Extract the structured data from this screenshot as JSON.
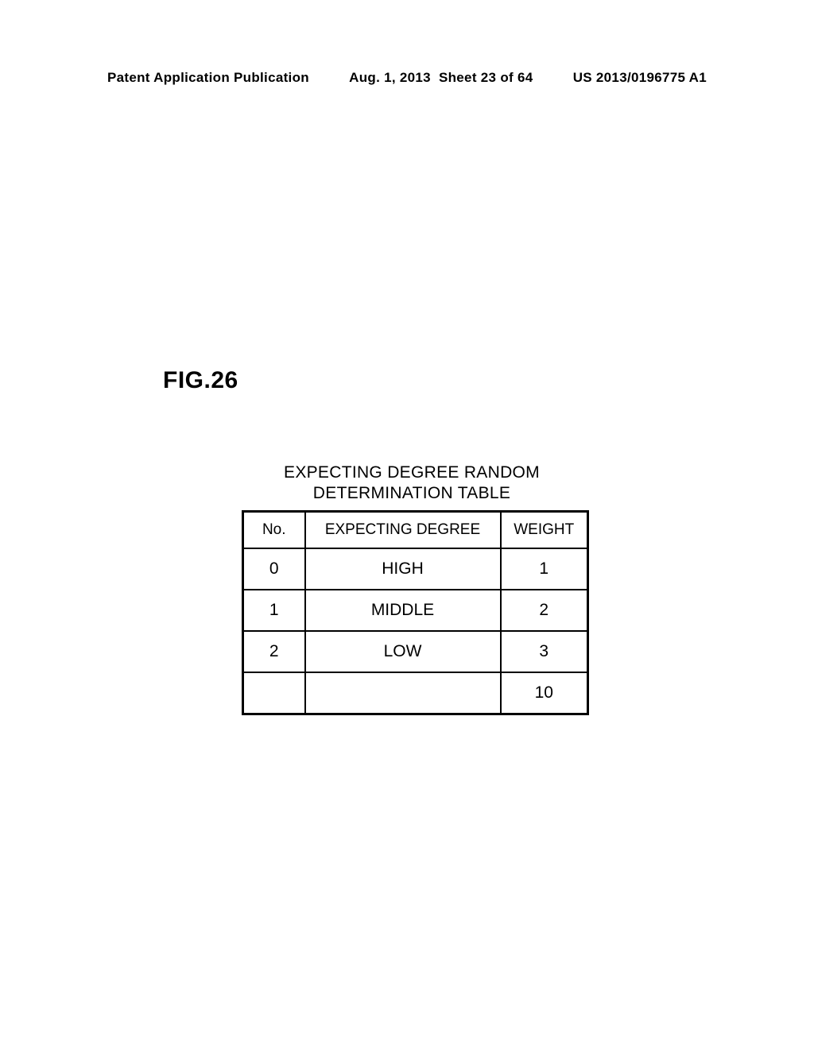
{
  "header": {
    "publication_type": "Patent Application Publication",
    "date": "Aug. 1, 2013",
    "sheet_info": "Sheet 23 of 64",
    "publication_number": "US 2013/0196775 A1"
  },
  "figure": {
    "label": "FIG.26",
    "table_title_line1": "EXPECTING DEGREE RANDOM",
    "table_title_line2": "DETERMINATION TABLE"
  },
  "table": {
    "columns": [
      "No.",
      "EXPECTING DEGREE",
      "WEIGHT"
    ],
    "rows": [
      {
        "no": "0",
        "degree": "HIGH",
        "weight": "1"
      },
      {
        "no": "1",
        "degree": "MIDDLE",
        "weight": "2"
      },
      {
        "no": "2",
        "degree": "LOW",
        "weight": "3"
      },
      {
        "no": "",
        "degree": "",
        "weight": "10"
      }
    ],
    "column_widths": {
      "no": 78,
      "degree": 246,
      "weight": 110
    },
    "border_color": "#000000",
    "background_color": "#ffffff",
    "header_fontsize": 19,
    "cell_fontsize": 21
  }
}
